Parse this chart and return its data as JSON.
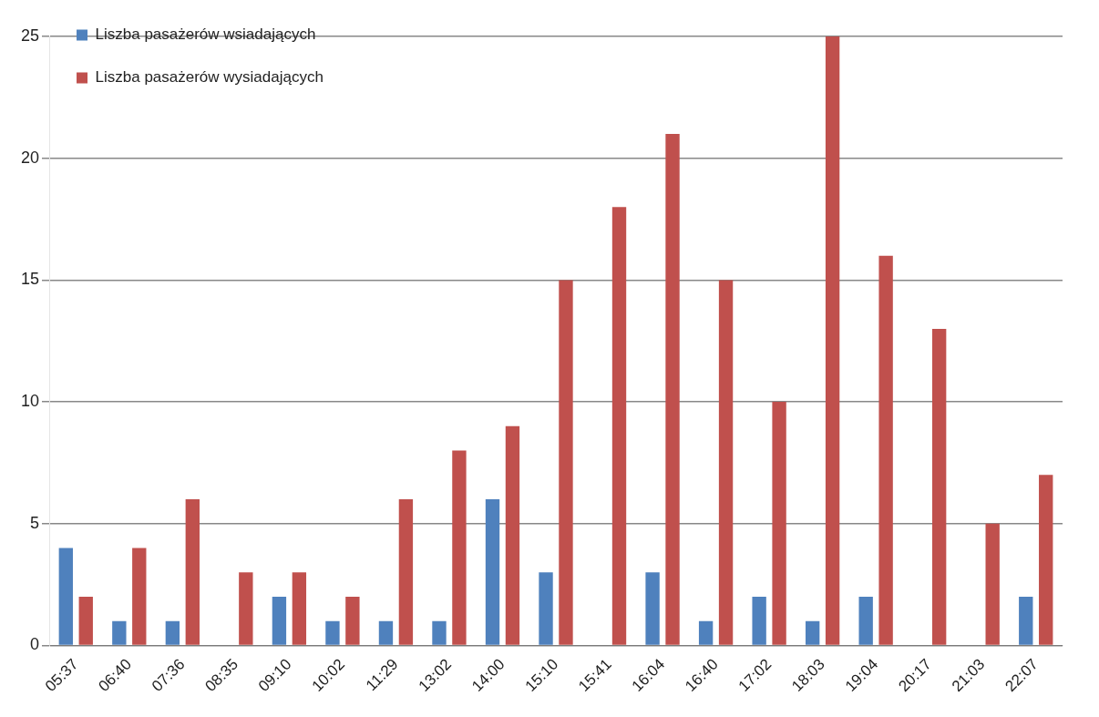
{
  "chart_data": {
    "type": "bar",
    "categories": [
      "05:37",
      "06:40",
      "07:36",
      "08:35",
      "09:10",
      "10:02",
      "11:29",
      "13:02",
      "14:00",
      "15:10",
      "15:41",
      "16:04",
      "16:40",
      "17:02",
      "18:03",
      "19:04",
      "20:17",
      "21:03",
      "22:07"
    ],
    "series": [
      {
        "name": "Liszba pasażerów wsiadających",
        "color": "#4f81bd",
        "values": [
          4,
          1,
          1,
          0,
          2,
          1,
          1,
          1,
          6,
          3,
          0,
          3,
          1,
          2,
          1,
          2,
          0,
          0,
          2
        ]
      },
      {
        "name": "Liszba pasażerów wysiadających",
        "color": "#c0504d",
        "values": [
          2,
          4,
          6,
          3,
          3,
          2,
          6,
          8,
          9,
          15,
          18,
          21,
          15,
          10,
          25,
          16,
          13,
          5,
          7
        ]
      }
    ],
    "ylim": [
      0,
      25
    ],
    "yticks": [
      0,
      5,
      10,
      15,
      20,
      25
    ],
    "grid": "y",
    "legend": "top left"
  }
}
